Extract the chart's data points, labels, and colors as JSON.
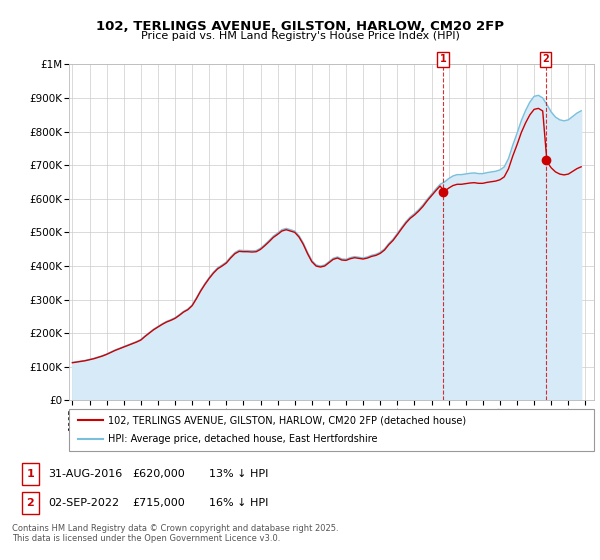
{
  "title": "102, TERLINGS AVENUE, GILSTON, HARLOW, CM20 2FP",
  "subtitle": "Price paid vs. HM Land Registry's House Price Index (HPI)",
  "ylim": [
    0,
    1000000
  ],
  "yticks": [
    0,
    100000,
    200000,
    300000,
    400000,
    500000,
    600000,
    700000,
    800000,
    900000,
    1000000
  ],
  "ytick_labels": [
    "£0",
    "£100K",
    "£200K",
    "£300K",
    "£400K",
    "£500K",
    "£600K",
    "£700K",
    "£800K",
    "£900K",
    "£1M"
  ],
  "hpi_color": "#7bbfdd",
  "hpi_fill_color": "#d6eaf8",
  "price_color": "#cc0000",
  "dashed_line_color": "#cc0000",
  "background_color": "#ffffff",
  "grid_color": "#cccccc",
  "legend_label_price": "102, TERLINGS AVENUE, GILSTON, HARLOW, CM20 2FP (detached house)",
  "legend_label_hpi": "HPI: Average price, detached house, East Hertfordshire",
  "annotation1_date": "31-AUG-2016",
  "annotation1_price": "£620,000",
  "annotation1_note": "13% ↓ HPI",
  "annotation2_date": "02-SEP-2022",
  "annotation2_price": "£715,000",
  "annotation2_note": "16% ↓ HPI",
  "footer": "Contains HM Land Registry data © Crown copyright and database right 2025.\nThis data is licensed under the Open Government Licence v3.0.",
  "hpi_x": [
    1995.0,
    1995.25,
    1995.5,
    1995.75,
    1996.0,
    1996.25,
    1996.5,
    1996.75,
    1997.0,
    1997.25,
    1997.5,
    1997.75,
    1998.0,
    1998.25,
    1998.5,
    1998.75,
    1999.0,
    1999.25,
    1999.5,
    1999.75,
    2000.0,
    2000.25,
    2000.5,
    2000.75,
    2001.0,
    2001.25,
    2001.5,
    2001.75,
    2002.0,
    2002.25,
    2002.5,
    2002.75,
    2003.0,
    2003.25,
    2003.5,
    2003.75,
    2004.0,
    2004.25,
    2004.5,
    2004.75,
    2005.0,
    2005.25,
    2005.5,
    2005.75,
    2006.0,
    2006.25,
    2006.5,
    2006.75,
    2007.0,
    2007.25,
    2007.5,
    2007.75,
    2008.0,
    2008.25,
    2008.5,
    2008.75,
    2009.0,
    2009.25,
    2009.5,
    2009.75,
    2010.0,
    2010.25,
    2010.5,
    2010.75,
    2011.0,
    2011.25,
    2011.5,
    2011.75,
    2012.0,
    2012.25,
    2012.5,
    2012.75,
    2013.0,
    2013.25,
    2013.5,
    2013.75,
    2014.0,
    2014.25,
    2014.5,
    2014.75,
    2015.0,
    2015.25,
    2015.5,
    2015.75,
    2016.0,
    2016.25,
    2016.5,
    2016.75,
    2017.0,
    2017.25,
    2017.5,
    2017.75,
    2018.0,
    2018.25,
    2018.5,
    2018.75,
    2019.0,
    2019.25,
    2019.5,
    2019.75,
    2020.0,
    2020.25,
    2020.5,
    2020.75,
    2021.0,
    2021.25,
    2021.5,
    2021.75,
    2022.0,
    2022.25,
    2022.5,
    2022.75,
    2023.0,
    2023.25,
    2023.5,
    2023.75,
    2024.0,
    2024.25,
    2024.5,
    2024.75
  ],
  "hpi_y": [
    113000,
    115000,
    117000,
    119000,
    122000,
    125000,
    129000,
    133000,
    138000,
    144000,
    150000,
    155000,
    160000,
    165000,
    170000,
    175000,
    181000,
    192000,
    202000,
    212000,
    220000,
    228000,
    235000,
    240000,
    246000,
    255000,
    265000,
    272000,
    284000,
    305000,
    328000,
    348000,
    366000,
    382000,
    395000,
    403000,
    412000,
    427000,
    440000,
    447000,
    446000,
    446000,
    445000,
    446000,
    453000,
    464000,
    476000,
    489000,
    498000,
    508000,
    512000,
    508000,
    504000,
    490000,
    468000,
    440000,
    416000,
    403000,
    400000,
    403000,
    413000,
    423000,
    427000,
    421000,
    420000,
    425000,
    428000,
    426000,
    424000,
    427000,
    432000,
    435000,
    441000,
    451000,
    467000,
    480000,
    497000,
    515000,
    532000,
    546000,
    556000,
    568000,
    582000,
    599000,
    614000,
    629000,
    643000,
    650000,
    660000,
    668000,
    672000,
    672000,
    674000,
    676000,
    677000,
    675000,
    675000,
    678000,
    680000,
    682000,
    686000,
    695000,
    720000,
    760000,
    795000,
    833000,
    863000,
    888000,
    905000,
    908000,
    900000,
    880000,
    858000,
    843000,
    835000,
    832000,
    835000,
    845000,
    855000,
    862000
  ],
  "sale1_x": 2016.67,
  "sale1_price": 620000,
  "sale2_x": 2022.67,
  "sale2_price": 715000,
  "sale0_x": 1996.5,
  "sale0_price": 128000,
  "xlim_start": 1994.8,
  "xlim_end": 2025.5
}
